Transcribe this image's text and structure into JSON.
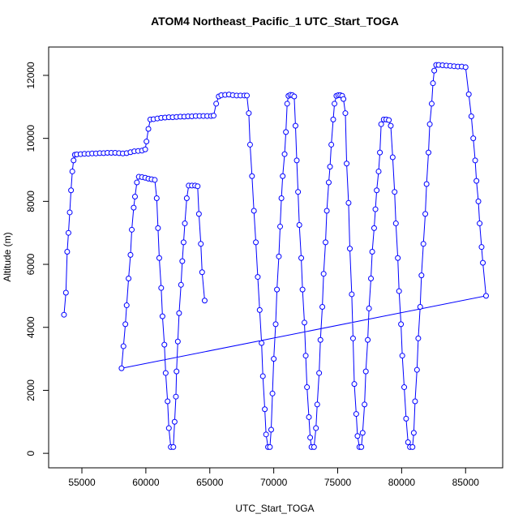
{
  "chart_data": {
    "type": "line",
    "title": "ATOM4 Northeast_Pacific_1 UTC_Start_TOGA",
    "x_label": "UTC_Start_TOGA",
    "y_label": "Altitude (m)",
    "x": [
      53600,
      53750,
      53850,
      53950,
      54050,
      54150,
      54250,
      54350,
      54450,
      54600,
      54900,
      55200,
      55500,
      55800,
      56100,
      56400,
      56700,
      57000,
      57300,
      57600,
      57900,
      58200,
      58500,
      58800,
      59100,
      59400,
      59700,
      59950,
      60050,
      60200,
      60350,
      60600,
      60900,
      61200,
      61500,
      61800,
      62100,
      62400,
      62700,
      63000,
      63300,
      63600,
      63900,
      64200,
      64500,
      64800,
      65100,
      65300,
      65500,
      65700,
      65900,
      66200,
      66500,
      66800,
      67100,
      67400,
      67700,
      67900,
      68050,
      68150,
      68300,
      68450,
      68600,
      68750,
      68900,
      69050,
      69150,
      69300,
      69400,
      69550,
      69700,
      69800,
      69900,
      70000,
      70150,
      70250,
      70400,
      70500,
      70600,
      70700,
      70850,
      70950,
      71050,
      71150,
      71300,
      71450,
      71600,
      71700,
      71800,
      71900,
      72000,
      72150,
      72250,
      72400,
      72500,
      72600,
      72750,
      72850,
      72950,
      73150,
      73300,
      73400,
      73550,
      73650,
      73800,
      73900,
      74050,
      74150,
      74300,
      74400,
      74500,
      74650,
      74750,
      74900,
      75050,
      75200,
      75350,
      75450,
      75600,
      75700,
      75850,
      75950,
      76100,
      76200,
      76300,
      76450,
      76550,
      76700,
      76850,
      76950,
      77100,
      77200,
      77350,
      77450,
      77600,
      77700,
      77850,
      77950,
      78050,
      78200,
      78300,
      78400,
      78600,
      78800,
      79000,
      79150,
      79300,
      79450,
      79550,
      79700,
      79800,
      79950,
      80050,
      80200,
      80350,
      80500,
      80650,
      80850,
      80950,
      81050,
      81200,
      81300,
      81450,
      81550,
      81700,
      81850,
      81950,
      82100,
      82200,
      82350,
      82450,
      82550,
      82700,
      82900,
      83200,
      83500,
      83800,
      84100,
      84400,
      84700,
      85000,
      85250,
      85450,
      85600,
      85750,
      85850,
      86000,
      86100,
      86250,
      86350,
      86600,
      58100,
      58250,
      58400,
      58500,
      58650,
      58800,
      58900,
      59050,
      59150,
      59300,
      59450,
      59700,
      59950,
      60200,
      60450,
      60700,
      60850,
      60950,
      61050,
      61200,
      61300,
      61450,
      61550,
      61700,
      61800,
      61950,
      62150,
      62250,
      62350,
      62400,
      62500,
      62600,
      62750,
      62850,
      62950,
      63050,
      63200,
      63350,
      63600,
      63850,
      64050,
      64150,
      64300,
      64400,
      64600
    ],
    "series": [
      {
        "color": "#0000ff",
        "values": [
          4400,
          5100,
          6400,
          7000,
          7650,
          8350,
          8950,
          9300,
          9480,
          9490,
          9500,
          9510,
          9510,
          9520,
          9520,
          9530,
          9530,
          9540,
          9540,
          9540,
          9530,
          9520,
          9530,
          9560,
          9590,
          9600,
          9610,
          9650,
          9900,
          10300,
          10600,
          10610,
          10630,
          10650,
          10660,
          10670,
          10670,
          10680,
          10690,
          10690,
          10700,
          10700,
          10710,
          10710,
          10710,
          10710,
          10710,
          10720,
          11100,
          11330,
          11370,
          11380,
          11390,
          11370,
          11360,
          11360,
          11360,
          11360,
          10800,
          9800,
          8800,
          7700,
          6700,
          5600,
          4550,
          3500,
          2450,
          1400,
          600,
          200,
          200,
          750,
          1900,
          3000,
          4100,
          5200,
          6250,
          7200,
          8100,
          8800,
          9500,
          10200,
          11100,
          11350,
          11380,
          11370,
          11330,
          10400,
          9300,
          8300,
          7250,
          6200,
          5200,
          4150,
          3100,
          2100,
          1150,
          500,
          200,
          200,
          800,
          1550,
          2550,
          3600,
          4650,
          5700,
          6700,
          7700,
          8600,
          9100,
          9800,
          10600,
          11100,
          11350,
          11370,
          11370,
          11350,
          11250,
          10800,
          9200,
          7950,
          6500,
          5050,
          3650,
          2200,
          1250,
          550,
          200,
          200,
          650,
          1550,
          2600,
          3600,
          4600,
          5550,
          6400,
          7150,
          7750,
          8350,
          8950,
          9550,
          10450,
          10600,
          10600,
          10580,
          10400,
          9400,
          8300,
          7300,
          6200,
          5150,
          4100,
          3100,
          2100,
          1100,
          350,
          200,
          200,
          650,
          1650,
          2650,
          3650,
          4650,
          5650,
          6650,
          7600,
          8550,
          9550,
          10450,
          11100,
          11750,
          12150,
          12330,
          12330,
          12320,
          12310,
          12300,
          12290,
          12280,
          12280,
          12260,
          11400,
          10700,
          10000,
          9300,
          8650,
          8000,
          7300,
          6550,
          6050,
          5000,
          2700,
          3400,
          4100,
          4700,
          5550,
          6300,
          7100,
          7800,
          8150,
          8600,
          8780,
          8770,
          8750,
          8720,
          8700,
          8680,
          8100,
          7150,
          6200,
          5250,
          4350,
          3450,
          2550,
          1650,
          800,
          200,
          200,
          1000,
          1800,
          2600,
          3550,
          4450,
          5350,
          6100,
          6700,
          7300,
          8100,
          8500,
          8500,
          8500,
          8480,
          7600,
          6650,
          5750,
          4850
        ]
      }
    ],
    "xlim": [
      52400,
      87900
    ],
    "ylim": [
      -460,
      12900
    ],
    "xticks": [
      55000,
      60000,
      65000,
      70000,
      75000,
      80000,
      85000
    ],
    "yticks": [
      0,
      2000,
      4000,
      6000,
      8000,
      10000,
      12000
    ]
  }
}
